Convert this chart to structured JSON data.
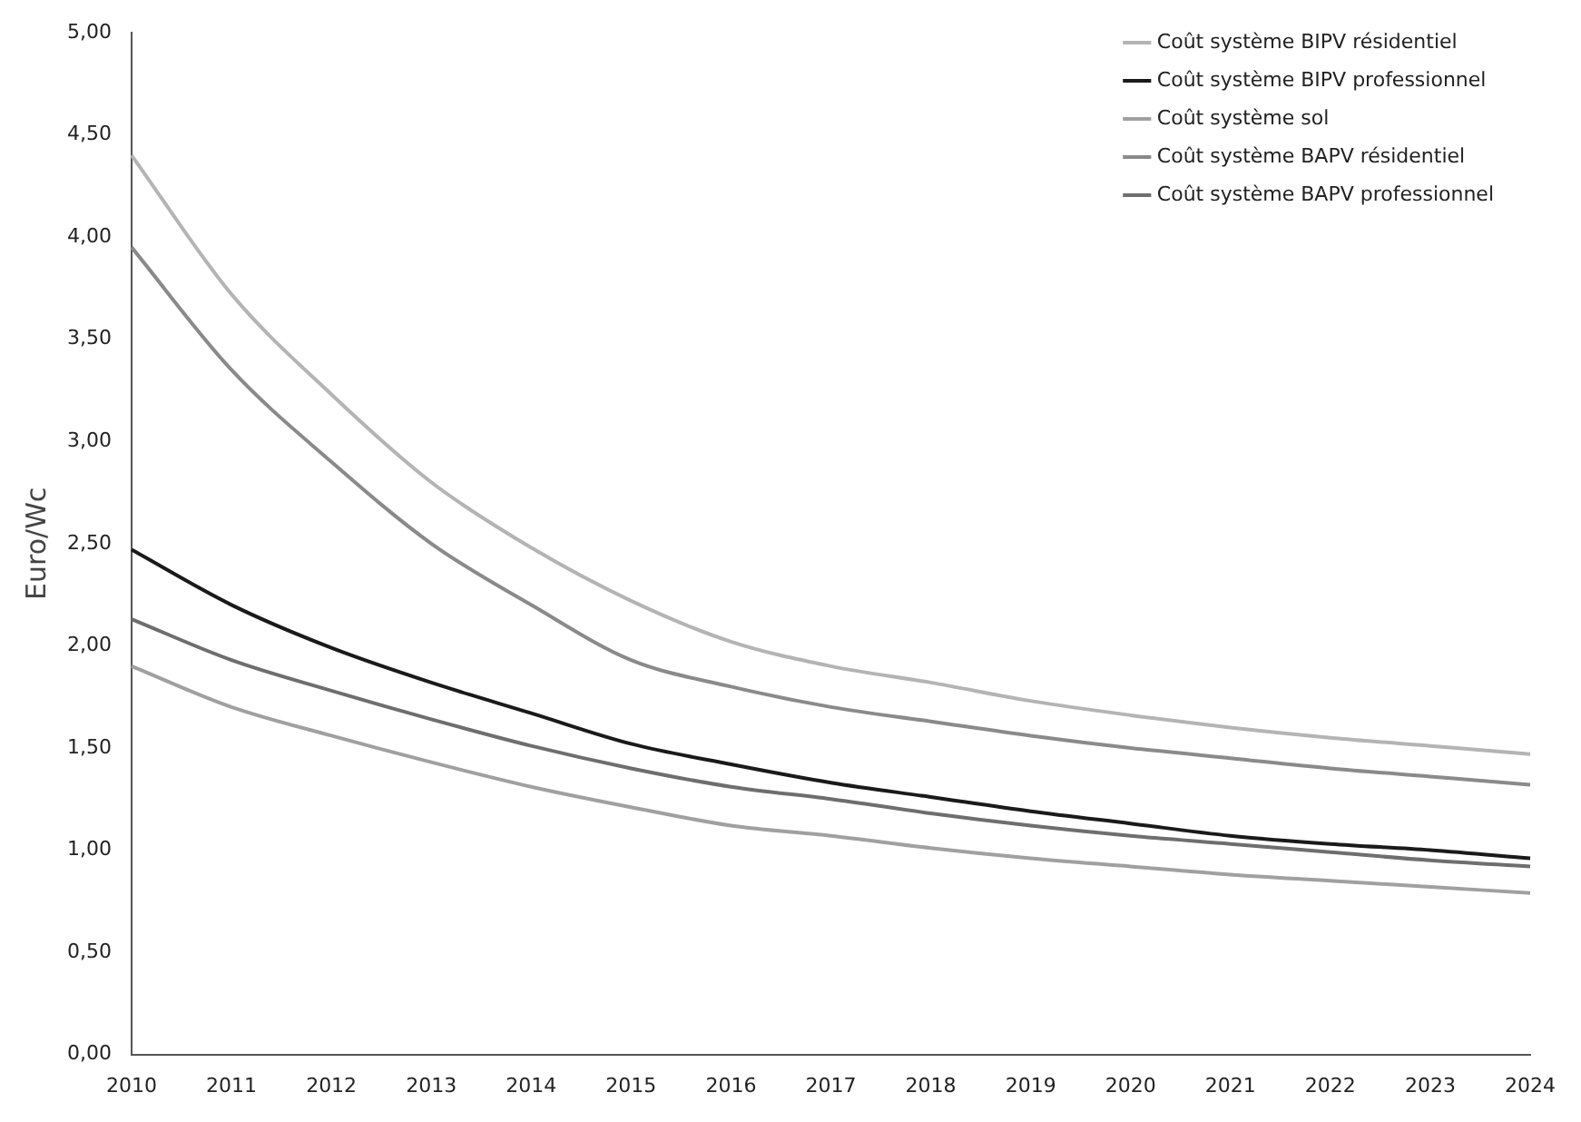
{
  "chart_data": {
    "type": "line",
    "ylabel": "Euro/Wc",
    "categories": [
      "2010",
      "2011",
      "2012",
      "2013",
      "2014",
      "2015",
      "2016",
      "2017",
      "2018",
      "2019",
      "2020",
      "2021",
      "2022",
      "2023",
      "2024"
    ],
    "series": [
      {
        "name": "Coût système BIPV résidentiel",
        "color": "#b4b4b4",
        "values": [
          4.4,
          3.72,
          3.23,
          2.8,
          2.48,
          2.22,
          2.02,
          1.9,
          1.82,
          1.73,
          1.66,
          1.6,
          1.55,
          1.51,
          1.47
        ]
      },
      {
        "name": "Coût système BIPV professionnel",
        "color": "#1a1a1a",
        "values": [
          2.47,
          2.2,
          1.99,
          1.82,
          1.67,
          1.52,
          1.42,
          1.33,
          1.26,
          1.19,
          1.13,
          1.07,
          1.03,
          1.0,
          0.96
        ]
      },
      {
        "name": "Coût système sol",
        "color": "#a0a0a0",
        "values": [
          1.9,
          1.7,
          1.56,
          1.43,
          1.31,
          1.21,
          1.12,
          1.07,
          1.01,
          0.96,
          0.92,
          0.88,
          0.85,
          0.82,
          0.79
        ]
      },
      {
        "name": "Coût système BAPV résidentiel",
        "color": "#8a8a8a",
        "values": [
          3.95,
          3.35,
          2.9,
          2.5,
          2.2,
          1.93,
          1.8,
          1.7,
          1.63,
          1.56,
          1.5,
          1.45,
          1.4,
          1.36,
          1.32
        ]
      },
      {
        "name": "Coût système BAPV professionnel",
        "color": "#6e6e6e",
        "values": [
          2.13,
          1.93,
          1.78,
          1.64,
          1.51,
          1.4,
          1.31,
          1.25,
          1.18,
          1.12,
          1.07,
          1.03,
          0.99,
          0.95,
          0.92
        ]
      }
    ],
    "ylim": [
      0,
      5
    ],
    "yticks": [
      {
        "value": 0,
        "label": "0,00"
      },
      {
        "value": 0.5,
        "label": "0,50"
      },
      {
        "value": 1,
        "label": "1,00"
      },
      {
        "value": 1.5,
        "label": "1,50"
      },
      {
        "value": 2,
        "label": "2,00"
      },
      {
        "value": 2.5,
        "label": "2,50"
      },
      {
        "value": 3,
        "label": "3,00"
      },
      {
        "value": 3.5,
        "label": "3,50"
      },
      {
        "value": 4,
        "label": "4,00"
      },
      {
        "value": 4.5,
        "label": "4,50"
      },
      {
        "value": 5,
        "label": "5,00"
      }
    ],
    "grid": false,
    "legend": "top right",
    "marker": "none",
    "line_style": "solid"
  }
}
